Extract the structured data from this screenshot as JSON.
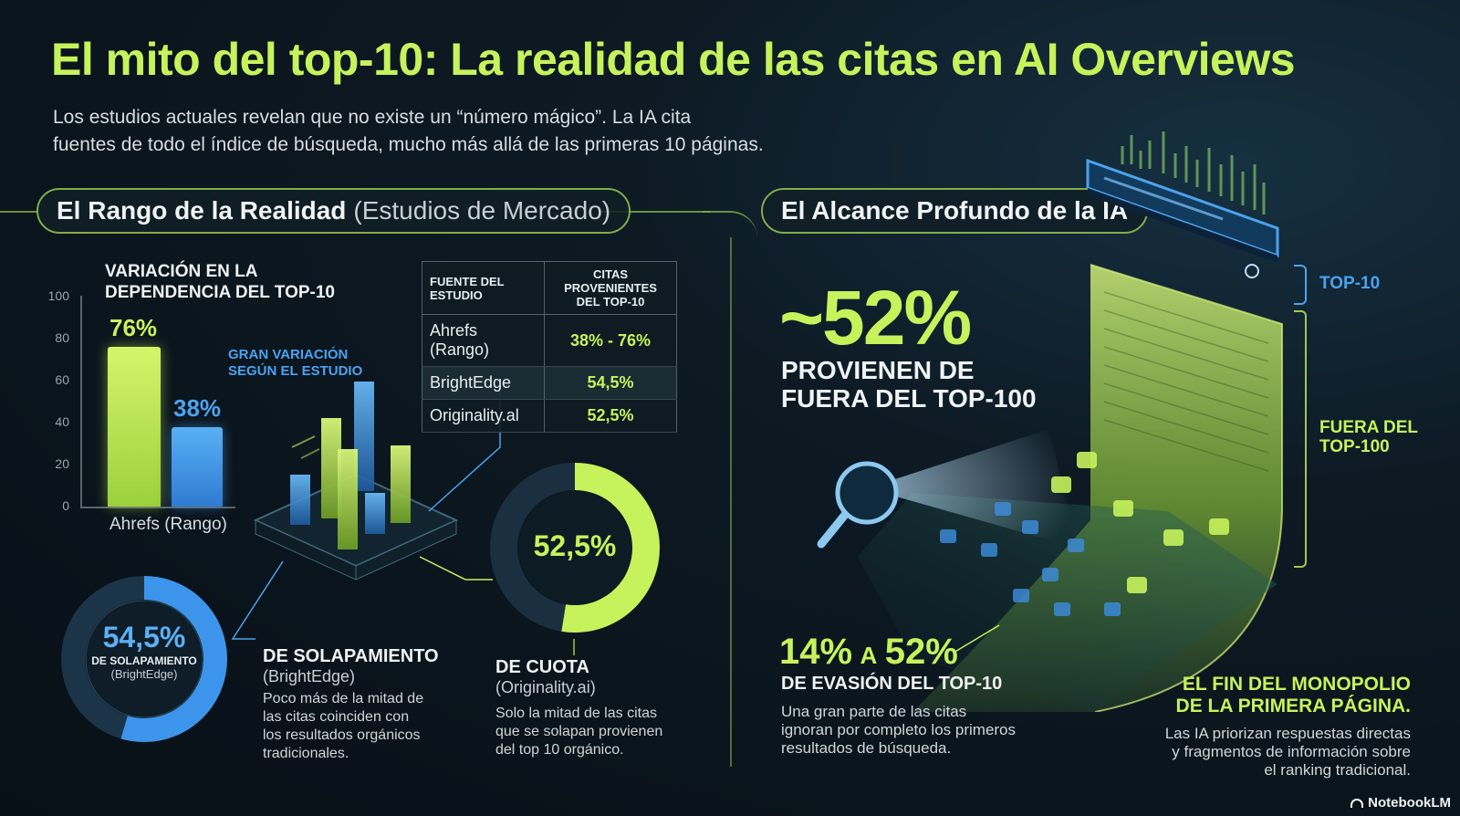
{
  "header": {
    "title": "El mito del top-10: La realidad de las citas en AI Overviews",
    "subtitle_line1": "Los estudios actuales revelan que no existe un “número mágico”. La IA cita",
    "subtitle_line2": "fuentes de todo el índice de búsqueda, mucho más allá de las primeras 10 páginas."
  },
  "left_section": {
    "pill_bold": "El Rango de la Realidad",
    "pill_light": "(Estudios de Mercado)",
    "chart_title_line1": "VARIACIÓN EN LA",
    "chart_title_line2": "DEPENDENCIA DEL TOP-10",
    "callout_line1": "GRAN VARIACIÓN",
    "callout_line2": "SEGÚN EL ESTUDIO"
  },
  "chart_data": {
    "type": "bar",
    "categories": [
      "Ahrefs (Rango)"
    ],
    "series": [
      {
        "values": [
          76
        ],
        "label": "76%",
        "color": "#c6f25c"
      },
      {
        "values": [
          38
        ],
        "label": "38%",
        "color": "#4aa3f0"
      }
    ],
    "xlabel": "Ahrefs (Rango)",
    "ylim": [
      0,
      100
    ],
    "yticks": [
      "100",
      "80",
      "60",
      "40",
      "20",
      "0"
    ]
  },
  "table": {
    "headers": [
      "FUENTE DEL ESTUDIO",
      "CITAS PROVENIENTES DEL TOP-10"
    ],
    "rows": [
      {
        "source": "Ahrefs (Rango)",
        "value": "38% - 76%"
      },
      {
        "source": "BrightEdge",
        "value": "54,5%"
      },
      {
        "source": "Originality.al",
        "value": "52,5%"
      }
    ]
  },
  "donut_brightedge": {
    "value": 54.5,
    "value_label": "54,5%",
    "inner_label": "DE SOLAPAMIENTO",
    "inner_sub": "(BrightEdge)",
    "title": "DE SOLAPAMIENTO",
    "source": "(BrightEdge)",
    "desc_line1": "Poco más de la mitad de",
    "desc_line2": "las citas coinciden con",
    "desc_line3": "los resultados orgánicos",
    "desc_line4": "tradicionales.",
    "color": "#4aa3f0"
  },
  "donut_originality": {
    "value": 52.5,
    "value_label": "52,5%",
    "title": "DE CUOTA",
    "source": "(Originality.ai)",
    "desc_line1": "Solo la mitad de las citas",
    "desc_line2": "que se solapan provienen",
    "desc_line3": "del top 10 orgánico.",
    "color": "#c6f25c"
  },
  "right_section": {
    "pill": "El Alcance Profundo de la IA",
    "big_value": "~52%",
    "big_label_line1": "PROVIENEN DE",
    "big_label_line2": "FUERA DEL TOP-100",
    "top10_label": "TOP-10",
    "outside_label_line1": "FUERA DEL",
    "outside_label_line2": "TOP-100",
    "range_from": "14%",
    "range_mid": "A",
    "range_to": "52%",
    "range_title": "DE EVASIÓN DEL TOP-10",
    "range_desc_line1": "Una gran parte de las citas",
    "range_desc_line2": "ignoran por completo los primeros",
    "range_desc_line3": "resultados de búsqueda.",
    "end_title_line1": "EL FIN DEL MONOPOLIO",
    "end_title_line2": "DE LA PRIMERA PÁGINA.",
    "end_desc_line1": "Las IA priorizan respuestas directas",
    "end_desc_line2": "y fragmentos de información sobre",
    "end_desc_line3": "el ranking tradicional."
  },
  "footer": {
    "brand": "NotebookLM"
  },
  "colors": {
    "accent_lime": "#c6f25c",
    "accent_blue": "#4aa3f0",
    "background": "#0a141c"
  }
}
